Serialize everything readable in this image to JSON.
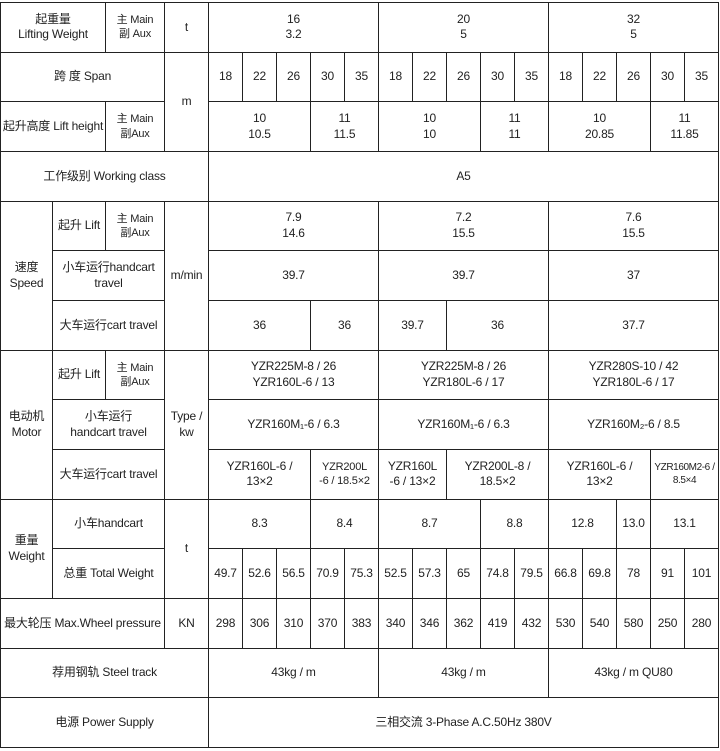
{
  "labels": {
    "lifting_weight": "起重量\nLifting Weight",
    "main_aux": "主 Main\n副 Aux",
    "main_aux_b": "主 Main\n副Aux",
    "unit_t": "t",
    "span": "跨  度 Span",
    "unit_m": "m",
    "lift_height": "起升高度 Lift height",
    "working_class": "工作级别 Working class",
    "speed": "速度\nSpeed",
    "lift": "起升 Lift",
    "unit_mmin": "m/min",
    "handcart_travel_speed": "小车运行handcart\ntravel",
    "cart_travel": "大车运行cart travel",
    "motor": "电动机\nMotor",
    "unit_type_kw": "Type /\nkw",
    "handcart_travel_motor": "小车运行\nhandcart travel",
    "weight": "重量\nWeight",
    "handcart_weight": "小车handcart",
    "total_weight": "总重 Total Weight",
    "max_wheel_pressure": "最大轮压 Max.Wheel pressure",
    "unit_kn": "KN",
    "steel_track": "荐用钢轨 Steel track",
    "power_supply": "电源 Power Supply"
  },
  "rows": {
    "lifting_weight": [
      "16\n3.2",
      "20\n5",
      "32\n5"
    ],
    "span": [
      "18",
      "22",
      "26",
      "30",
      "35",
      "18",
      "22",
      "26",
      "30",
      "35",
      "18",
      "22",
      "26",
      "30",
      "35"
    ],
    "lift_height": [
      "10\n10.5",
      "11\n11.5",
      "10\n10",
      "11\n11",
      "10\n20.85",
      "11\n11.85"
    ],
    "working_class": [
      "A5"
    ],
    "speed_lift": [
      "7.9\n14.6",
      "7.2\n15.5",
      "7.6\n15.5"
    ],
    "speed_handcart": [
      "39.7",
      "39.7",
      "37"
    ],
    "speed_cart": [
      "36",
      "36",
      "39.7",
      "36",
      "37.7"
    ],
    "motor_lift": [
      "YZR225M-8 / 26\nYZR160L-6 / 13",
      "YZR225M-8 / 26\nYZR180L-6 / 17",
      "YZR280S-10 / 42\nYZR180L-6 / 17"
    ],
    "motor_handcart": [
      "YZR160M₁-6 / 6.3",
      "YZR160M₁-6 / 6.3",
      "YZR160M₂-6 / 8.5"
    ],
    "motor_cart": [
      "YZR160L-6 /\n13×2",
      "YZR200L\n-6 / 18.5×2",
      "YZR160L\n-6 / 13×2",
      "YZR200L-8 /\n18.5×2",
      "YZR160L-6 /\n13×2",
      "YZR160M2-6 /\n8.5×4"
    ],
    "weight_handcart": [
      "8.3",
      "8.4",
      "8.7",
      "8.8",
      "12.8",
      "13.0",
      "13.1"
    ],
    "total_weight": [
      "49.7",
      "52.6",
      "56.5",
      "70.9",
      "75.3",
      "52.5",
      "57.3",
      "65",
      "74.8",
      "79.5",
      "66.8",
      "69.8",
      "78",
      "91",
      "101"
    ],
    "max_wheel_pressure": [
      "298",
      "306",
      "310",
      "370",
      "383",
      "340",
      "346",
      "362",
      "419",
      "432",
      "530",
      "540",
      "580",
      "250",
      "280"
    ],
    "steel_track": [
      "43kg / m",
      "43kg / m",
      "43kg / m QU80"
    ],
    "power_supply": [
      "三相交流 3-Phase A.C.50Hz 380V"
    ]
  }
}
